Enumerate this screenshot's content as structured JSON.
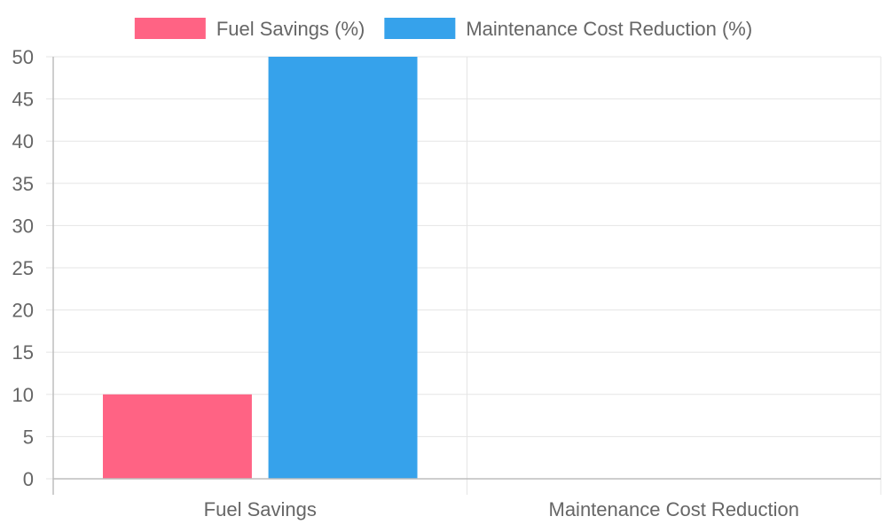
{
  "chart_data": {
    "type": "bar",
    "categories": [
      "Fuel Savings",
      "Maintenance Cost Reduction"
    ],
    "series": [
      {
        "name": "Fuel Savings (%)",
        "color": "#ff6384",
        "values": [
          10,
          null
        ]
      },
      {
        "name": "Maintenance Cost Reduction (%)",
        "color": "#36a2eb",
        "values": [
          50,
          null
        ]
      }
    ],
    "y_ticks": [
      0,
      5,
      10,
      15,
      20,
      25,
      30,
      35,
      40,
      45,
      50
    ],
    "ylim": [
      0,
      50
    ],
    "grid": true,
    "legend_position": "top",
    "title": "",
    "xlabel": "",
    "ylabel": ""
  }
}
